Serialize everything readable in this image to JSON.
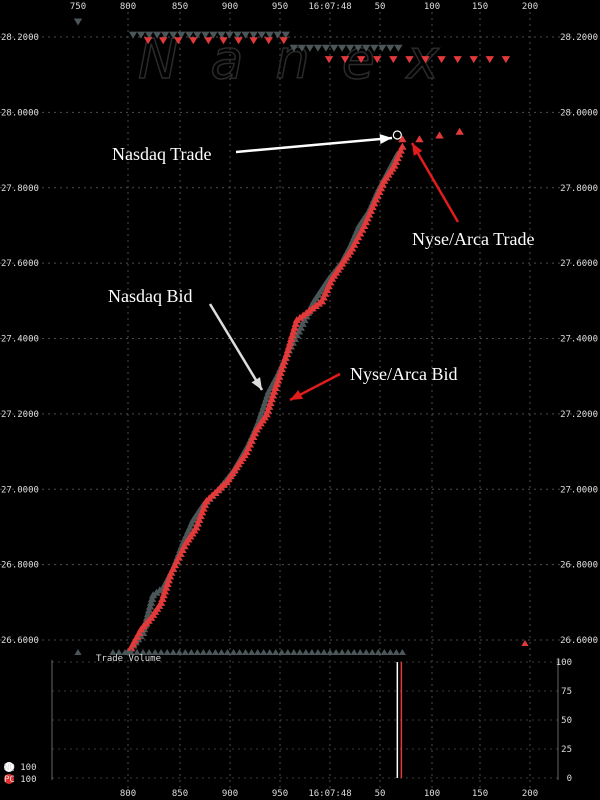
{
  "chart_data": {
    "type": "scatter",
    "watermark": "Nanex",
    "top_axis": {
      "ticks": [
        "750",
        "800",
        "850",
        "900",
        "950",
        "16:07:48",
        "50",
        "100",
        "150",
        "200"
      ]
    },
    "bottom_axis": {
      "ticks": [
        "800",
        "850",
        "900",
        "950",
        "16:07:48",
        "50",
        "100",
        "150",
        "200"
      ]
    },
    "price_axis": {
      "ticks": [
        "28.2000",
        "28.0000",
        "27.8000",
        "27.6000",
        "27.4000",
        "27.2000",
        "27.0000",
        "26.8000",
        "26.6000"
      ],
      "ylim": [
        26.56,
        28.26
      ]
    },
    "volume_axis": {
      "ticks": [
        "100",
        "75",
        "50",
        "25",
        "0"
      ],
      "ylim": [
        0,
        100
      ]
    },
    "volume_label": "Trade Volume",
    "legend": [
      {
        "name": "NQ 100",
        "color": "#ffffff"
      },
      {
        "name": "PC 100",
        "color": "#e03030"
      }
    ],
    "colors": {
      "nasdaq": "#4a5658",
      "nyse": "#e23a3a",
      "grid": "#555555"
    },
    "annotations": [
      {
        "text": "Nasdaq Trade",
        "color": "#ffffff"
      },
      {
        "text": "Nyse/Arca Trade",
        "color": "#e21b1b"
      },
      {
        "text": "Nasdaq Bid",
        "color": "#dddddd"
      },
      {
        "text": "Nyse/Arca Bid",
        "color": "#e21b1b"
      }
    ],
    "series": [
      {
        "name": "Nasdaq Bid",
        "color": "#4a5658",
        "x": [
          800,
          815,
          825,
          835,
          845,
          855,
          865,
          875,
          890,
          905,
          920,
          930,
          940,
          950,
          960,
          970,
          985,
          1000,
          1012,
          1022,
          1030,
          1040,
          1050,
          1060,
          1068
        ],
        "y": [
          26.57,
          26.62,
          26.72,
          26.74,
          26.79,
          26.86,
          26.92,
          26.96,
          27.0,
          27.05,
          27.12,
          27.18,
          27.26,
          27.31,
          27.37,
          27.42,
          27.5,
          27.56,
          27.6,
          27.65,
          27.7,
          27.74,
          27.8,
          27.85,
          27.89
        ]
      },
      {
        "name": "Nyse/Arca Bid",
        "color": "#e23a3a",
        "x": [
          803,
          813,
          823,
          833,
          843,
          858,
          868,
          878,
          898,
          908,
          918,
          928,
          938,
          948,
          958,
          968,
          993,
          1003,
          1013,
          1023,
          1035,
          1045,
          1055,
          1065,
          1073
        ],
        "y": [
          26.58,
          26.63,
          26.66,
          26.7,
          26.78,
          26.86,
          26.9,
          26.97,
          27.02,
          27.06,
          27.1,
          27.16,
          27.2,
          27.28,
          27.36,
          27.45,
          27.5,
          27.56,
          27.6,
          27.64,
          27.7,
          27.76,
          27.82,
          27.86,
          27.91
        ]
      },
      {
        "name": "Nyse/Arca Trade",
        "color": "#e23a3a",
        "x": [
          1073,
          1090,
          1110,
          1130
        ],
        "y": [
          27.93,
          27.93,
          27.94,
          27.95
        ]
      },
      {
        "name": "Nasdaq Trade",
        "color": "#ffffff",
        "x": [
          1068
        ],
        "y": [
          27.94
        ]
      }
    ],
    "volume_bars": [
      {
        "x": 1068,
        "value": 100,
        "color": "#ffffff"
      },
      {
        "x": 1072,
        "value": 100,
        "color": "#e23a3a"
      }
    ]
  }
}
